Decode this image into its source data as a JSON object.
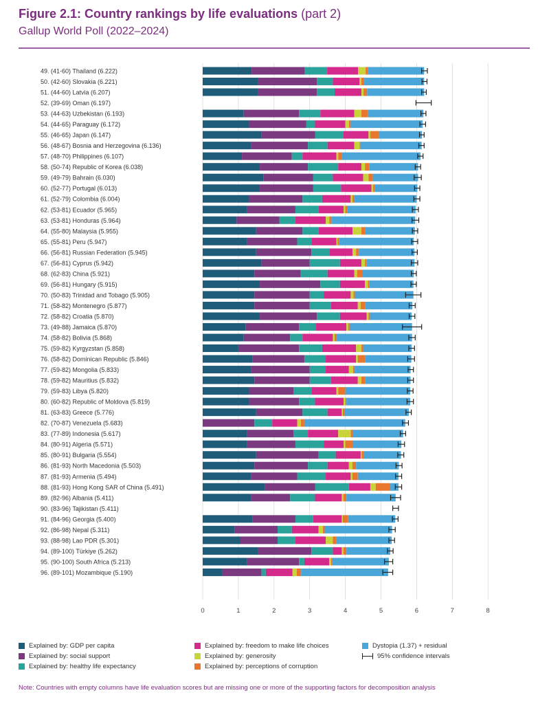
{
  "title": {
    "bold": "Figure 2.1: Country rankings by life evaluations",
    "part": "(part 2)",
    "subtitle": "Gallup World Poll (2022–2024)"
  },
  "legend": [
    {
      "label": "Explained by: GDP per capita",
      "color": "#1f5c7a"
    },
    {
      "label": "Explained by: social support",
      "color": "#7b3a7f"
    },
    {
      "label": "Explained by: healthy life expectancy",
      "color": "#2aa39a"
    },
    {
      "label": "Explained by: freedom to make life choices",
      "color": "#d42a8c"
    },
    {
      "label": "Explained by: generosity",
      "color": "#c8d43a"
    },
    {
      "label": "Explained by: perceptions of corruption",
      "color": "#e8762d"
    },
    {
      "label": "Dystopia (1.37) + residual",
      "color": "#4aa6d8"
    },
    {
      "label": "95% confidence intervals",
      "color": "#222222"
    }
  ],
  "note": "Note: Countries with empty columns have life evaluation scores but are missing one or more of the supporting factors for decomposition analysis",
  "chart_data": {
    "type": "bar",
    "orientation": "horizontal",
    "stacked": true,
    "xlim": [
      0,
      8
    ],
    "x_ticks": [
      "0",
      "1",
      "2",
      "3",
      "4",
      "5",
      "6",
      "7",
      "8"
    ],
    "series_names": [
      "GDP per capita",
      "social support",
      "healthy life expectancy",
      "freedom to make life choices",
      "generosity",
      "perceptions of corruption",
      "Dystopia (1.37) + residual"
    ],
    "rows": [
      {
        "label": "49.  (41-60) Thailand (6.222)",
        "score": 6.222,
        "ci": [
          6.14,
          6.3
        ],
        "values": [
          1.37,
          1.49,
          0.63,
          0.87,
          0.21,
          0.06,
          1.58
        ]
      },
      {
        "label": "50.  (42-60) Slovakia (6.221)",
        "score": 6.221,
        "ci": [
          6.15,
          6.29
        ],
        "values": [
          1.55,
          1.65,
          0.45,
          0.75,
          0.05,
          0.08,
          1.68
        ]
      },
      {
        "label": "51.  (44-60) Latvia (6.207)",
        "score": 6.207,
        "ci": [
          6.14,
          6.27
        ],
        "values": [
          1.55,
          1.65,
          0.5,
          0.75,
          0.06,
          0.1,
          1.6
        ]
      },
      {
        "label": "52.  (39-69) Oman (6.197)",
        "score": 6.197,
        "ci": [
          5.98,
          6.41
        ],
        "values": []
      },
      {
        "label": "53.  (44-63) Uzbekistan (6.193)",
        "score": 6.193,
        "ci": [
          6.12,
          6.26
        ],
        "values": [
          1.15,
          1.55,
          0.6,
          0.95,
          0.2,
          0.18,
          1.56
        ]
      },
      {
        "label": "54.  (44-65) Paraguay (6.172)",
        "score": 6.172,
        "ci": [
          6.09,
          6.25
        ],
        "values": [
          1.3,
          1.6,
          0.25,
          0.85,
          0.1,
          0.05,
          2.02
        ]
      },
      {
        "label": "55.  (46-65) Japan (6.147)",
        "score": 6.147,
        "ci": [
          6.08,
          6.21
        ],
        "values": [
          1.65,
          1.5,
          0.8,
          0.7,
          0.05,
          0.25,
          1.2
        ]
      },
      {
        "label": "56.  (48-67) Bosnia and Herzegovina (6.136)",
        "score": 6.136,
        "ci": [
          6.06,
          6.21
        ],
        "values": [
          1.35,
          1.6,
          0.55,
          0.75,
          0.15,
          0.02,
          1.72
        ]
      },
      {
        "label": "57.  (48-70) Philippines (6.107)",
        "score": 6.107,
        "ci": [
          6.03,
          6.18
        ],
        "values": [
          1.1,
          1.4,
          0.3,
          0.95,
          0.05,
          0.1,
          2.21
        ]
      },
      {
        "label": "58.  (50-74) Republic of Korea (6.038)",
        "score": 6.038,
        "ci": [
          5.96,
          6.11
        ],
        "values": [
          1.6,
          1.35,
          0.85,
          0.65,
          0.1,
          0.12,
          1.37
        ]
      },
      {
        "label": "59.  (49-79) Bahrain (6.030)",
        "score": 6.03,
        "ci": [
          5.93,
          6.13
        ],
        "values": [
          1.7,
          1.4,
          0.55,
          0.85,
          0.15,
          0.12,
          1.27
        ]
      },
      {
        "label": "60.  (52-77) Portugal (6.013)",
        "score": 6.013,
        "ci": [
          5.94,
          6.09
        ],
        "values": [
          1.6,
          1.5,
          0.78,
          0.85,
          0.05,
          0.04,
          1.2
        ]
      },
      {
        "label": "61.  (52-79) Colombia (6.004)",
        "score": 6.004,
        "ci": [
          5.92,
          6.09
        ],
        "values": [
          1.3,
          1.5,
          0.55,
          0.8,
          0.05,
          0.04,
          1.76
        ]
      },
      {
        "label": "62.  (53-81) Ecuador (5.965)",
        "score": 5.965,
        "ci": [
          5.88,
          6.05
        ],
        "values": [
          1.25,
          1.35,
          0.65,
          0.7,
          0.05,
          0.06,
          1.91
        ]
      },
      {
        "label": "63.  (53-81) Honduras (5.964)",
        "score": 5.964,
        "ci": [
          5.87,
          6.06
        ],
        "values": [
          0.95,
          1.2,
          0.45,
          0.85,
          0.1,
          0.06,
          2.35
        ]
      },
      {
        "label": "64.  (55-80) Malaysia (5.955)",
        "score": 5.955,
        "ci": [
          5.88,
          6.03
        ],
        "values": [
          1.5,
          1.3,
          0.45,
          0.95,
          0.25,
          0.1,
          1.4
        ]
      },
      {
        "label": "65.  (55-81) Peru (5.947)",
        "score": 5.947,
        "ci": [
          5.86,
          6.03
        ],
        "values": [
          1.25,
          1.4,
          0.4,
          0.7,
          0.03,
          0.04,
          2.1
        ]
      },
      {
        "label": "66.  (56-81) Russian Federation (5.945)",
        "score": 5.945,
        "ci": [
          5.87,
          6.02
        ],
        "values": [
          1.5,
          1.55,
          0.5,
          0.65,
          0.1,
          0.08,
          1.56
        ]
      },
      {
        "label": "67.  (56-81) Cyprus (5.942)",
        "score": 5.942,
        "ci": [
          5.85,
          6.03
        ],
        "values": [
          1.65,
          1.35,
          0.85,
          0.6,
          0.1,
          0.05,
          1.34
        ]
      },
      {
        "label": "68.  (62-83) China (5.921)",
        "score": 5.921,
        "ci": [
          5.85,
          5.99
        ],
        "values": [
          1.45,
          1.3,
          0.75,
          0.75,
          0.08,
          0.14,
          1.45
        ]
      },
      {
        "label": "69.  (56-81) Hungary (5.915)",
        "score": 5.915,
        "ci": [
          5.84,
          5.99
        ],
        "values": [
          1.6,
          1.7,
          0.55,
          0.7,
          0.08,
          0.04,
          1.24
        ]
      },
      {
        "label": "70.  (50-83) Trinidad and Tobago (5.905)",
        "score": 5.905,
        "ci": [
          5.69,
          6.12
        ],
        "values": [
          1.45,
          1.55,
          0.4,
          0.75,
          0.08,
          0.04,
          1.64
        ]
      },
      {
        "label": "71.  (58-82) Montenegro (5.877)",
        "score": 5.877,
        "ci": [
          5.79,
          5.96
        ],
        "values": [
          1.45,
          1.55,
          0.6,
          0.75,
          0.08,
          0.12,
          1.33
        ]
      },
      {
        "label": "72.  (58-82) Croatia (5.870)",
        "score": 5.87,
        "ci": [
          5.79,
          5.95
        ],
        "values": [
          1.6,
          1.6,
          0.65,
          0.75,
          0.05,
          0.04,
          1.17
        ]
      },
      {
        "label": "73.  (49-88) Jamaica (5.870)",
        "score": 5.87,
        "ci": [
          5.6,
          6.14
        ],
        "values": [
          1.2,
          1.5,
          0.48,
          0.85,
          0.05,
          0.04,
          1.75
        ]
      },
      {
        "label": "74.  (58-82) Bolivia (5.868)",
        "score": 5.868,
        "ci": [
          5.78,
          5.96
        ],
        "values": [
          1.15,
          1.3,
          0.35,
          0.85,
          0.05,
          0.06,
          2.11
        ]
      },
      {
        "label": "75.  (59-82) Kyrgyzstan (5.858)",
        "score": 5.858,
        "ci": [
          5.78,
          5.94
        ],
        "values": [
          1.0,
          1.7,
          0.65,
          0.95,
          0.15,
          0.05,
          1.36
        ]
      },
      {
        "label": "76.  (58-82) Dominican Republic (5.846)",
        "score": 5.846,
        "ci": [
          5.75,
          5.94
        ],
        "values": [
          1.4,
          1.45,
          0.6,
          0.85,
          0.05,
          0.2,
          1.3
        ]
      },
      {
        "label": "77.  (59-82) Mongolia (5.833)",
        "score": 5.833,
        "ci": [
          5.76,
          5.91
        ],
        "values": [
          1.35,
          1.65,
          0.45,
          0.65,
          0.12,
          0.04,
          1.57
        ]
      },
      {
        "label": "78.  (59-82) Mauritius (5.832)",
        "score": 5.832,
        "ci": [
          5.75,
          5.91
        ],
        "values": [
          1.45,
          1.55,
          0.6,
          0.75,
          0.1,
          0.1,
          1.28
        ]
      },
      {
        "label": "79.  (59-83) Libya (5.820)",
        "score": 5.82,
        "ci": [
          5.74,
          5.9
        ],
        "values": [
          1.3,
          1.25,
          0.5,
          0.7,
          0.05,
          0.2,
          1.82
        ]
      },
      {
        "label": "80.  (60-82) Republic of Moldova (5.819)",
        "score": 5.819,
        "ci": [
          5.73,
          5.91
        ],
        "values": [
          1.3,
          1.4,
          0.45,
          0.8,
          0.05,
          0.03,
          1.79
        ]
      },
      {
        "label": "81.  (63-83) Greece (5.776)",
        "score": 5.776,
        "ci": [
          5.7,
          5.85
        ],
        "values": [
          1.5,
          1.3,
          0.7,
          0.4,
          0.03,
          0.05,
          1.8
        ]
      },
      {
        "label": "82.  (70-87) Venezuela (5.683)",
        "score": 5.683,
        "ci": [
          5.6,
          5.77
        ],
        "values": [
          0.0,
          1.45,
          0.5,
          0.7,
          0.1,
          0.1,
          2.83
        ]
      },
      {
        "label": "83.  (77-89) Indonesia (5.617)",
        "score": 5.617,
        "ci": [
          5.54,
          5.69
        ],
        "values": [
          1.25,
          1.3,
          0.4,
          0.85,
          0.35,
          0.05,
          1.42
        ]
      },
      {
        "label": "84.  (80-91) Algeria (5.571)",
        "score": 5.571,
        "ci": [
          5.48,
          5.66
        ],
        "values": [
          1.25,
          1.35,
          0.8,
          0.55,
          0.05,
          0.2,
          1.37
        ]
      },
      {
        "label": "85.  (80-91) Bulgaria (5.554)",
        "score": 5.554,
        "ci": [
          5.47,
          5.64
        ],
        "values": [
          1.5,
          1.75,
          0.48,
          0.7,
          0.03,
          0.05,
          1.05
        ]
      },
      {
        "label": "86.  (81-93) North Macedonia (5.503)",
        "score": 5.503,
        "ci": [
          5.42,
          5.59
        ],
        "values": [
          1.45,
          1.5,
          0.55,
          0.6,
          0.1,
          0.1,
          1.2
        ]
      },
      {
        "label": "87.  (81-93) Armenia (5.494)",
        "score": 5.494,
        "ci": [
          5.41,
          5.58
        ],
        "values": [
          1.35,
          1.3,
          0.8,
          0.7,
          0.05,
          0.15,
          1.14
        ]
      },
      {
        "label": "88.  (81-93) Hong Kong SAR of China (5.491)",
        "score": 5.491,
        "ci": [
          5.4,
          5.58
        ],
        "values": [
          1.75,
          1.4,
          0.95,
          0.6,
          0.15,
          0.4,
          0.24
        ]
      },
      {
        "label": "89.  (82-96) Albania (5.411)",
        "score": 5.411,
        "ci": [
          5.27,
          5.55
        ],
        "values": [
          1.35,
          1.1,
          0.7,
          0.75,
          0.05,
          0.08,
          1.38
        ]
      },
      {
        "label": "90.  (83-96) Tajikistan (5.411)",
        "score": 5.411,
        "ci": [
          5.33,
          5.49
        ],
        "values": []
      },
      {
        "label": "91.  (84-96) Georgia (5.400)",
        "score": 5.4,
        "ci": [
          5.32,
          5.48
        ],
        "values": [
          1.4,
          1.2,
          0.5,
          0.8,
          0.03,
          0.15,
          1.32
        ]
      },
      {
        "label": "92.  (86-98) Nepal (5.311)",
        "score": 5.311,
        "ci": [
          5.22,
          5.4
        ],
        "values": [
          0.9,
          1.2,
          0.4,
          0.75,
          0.12,
          0.05,
          1.89
        ]
      },
      {
        "label": "93.  (88-98) Lao PDR (5.301)",
        "score": 5.301,
        "ci": [
          5.22,
          5.38
        ],
        "values": [
          1.05,
          1.05,
          0.5,
          0.85,
          0.2,
          0.1,
          1.55
        ]
      },
      {
        "label": "94.  (89-100) Türkiye (5.262)",
        "score": 5.262,
        "ci": [
          5.18,
          5.34
        ],
        "values": [
          1.55,
          1.5,
          0.6,
          0.25,
          0.05,
          0.08,
          1.23
        ]
      },
      {
        "label": "95.  (90-100) South Africa (5.213)",
        "score": 5.213,
        "ci": [
          5.1,
          5.33
        ],
        "values": [
          1.25,
          1.45,
          0.15,
          0.7,
          0.05,
          0.03,
          1.59
        ]
      },
      {
        "label": "96.  (89-101) Mozambique (5.190)",
        "score": 5.19,
        "ci": [
          5.05,
          5.33
        ],
        "values": [
          0.55,
          1.1,
          0.12,
          0.75,
          0.12,
          0.12,
          2.44
        ]
      }
    ]
  }
}
